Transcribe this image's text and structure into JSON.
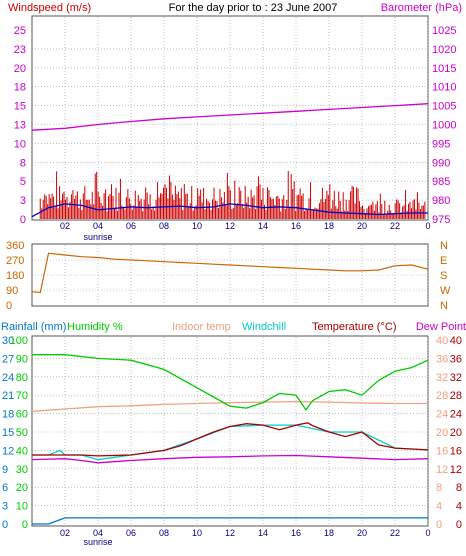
{
  "title": "For the day prior to : 23 June 2007",
  "colors": {
    "windspeed": "#cc0000",
    "windgust": "#0000cc",
    "barometer": "#cc00cc",
    "direction": "#cc6600",
    "rainfall": "#0077cc",
    "humidity": "#00cc00",
    "indoor": "#f0a080",
    "windchill": "#00cccc",
    "temperature": "#aa0000",
    "dewpoint": "#cc00cc",
    "grid": "#999999"
  },
  "chart_data": [
    {
      "type": "line",
      "panel": "wind-barometer",
      "title": "For the day prior to : 23 June 2007",
      "left_axis_label": "Windspeed (m/s)",
      "right_axis_label": "Barometer (hPa)",
      "left_ticks": [
        "0",
        "3",
        "5",
        "8",
        "10",
        "13",
        "15",
        "18",
        "20",
        "23",
        "25"
      ],
      "right_ticks": [
        "975",
        "980",
        "985",
        "990",
        "995",
        "1000",
        "1005",
        "1010",
        "1015",
        "1020",
        "1025"
      ],
      "ylim_left": [
        0,
        25
      ],
      "ylim_right": [
        975,
        1025
      ],
      "x_ticks": [
        "02",
        "04",
        "06",
        "08",
        "10",
        "12",
        "14",
        "16",
        "18",
        "20",
        "22",
        "0"
      ],
      "x_annotation": "sunrise",
      "series": [
        {
          "name": "Windspeed (m/s)",
          "axis": "left",
          "x": [
            0,
            1,
            2,
            3,
            4,
            5,
            6,
            7,
            8,
            9,
            10,
            11,
            12,
            13,
            14,
            15,
            16,
            17,
            18,
            19,
            20,
            21,
            22,
            23,
            24
          ],
          "values": [
            0.3,
            1.5,
            2,
            1.8,
            1.2,
            1.4,
            1.6,
            1.5,
            1.6,
            1.7,
            1.5,
            1.6,
            2,
            1.8,
            1.5,
            1.6,
            1.5,
            1.2,
            0.9,
            0.8,
            0.7,
            0.6,
            0.7,
            0.8,
            0.8
          ]
        },
        {
          "name": "Barometer (hPa)",
          "axis": "right",
          "x": [
            0,
            2,
            4,
            6,
            8,
            10,
            12,
            14,
            16,
            18,
            20,
            22,
            24
          ],
          "values": [
            998.5,
            999,
            1000,
            1000.8,
            1001.5,
            1002,
            1002.5,
            1003,
            1003.5,
            1004,
            1004.5,
            1005,
            1005.5
          ]
        }
      ]
    },
    {
      "type": "line",
      "panel": "wind-direction",
      "left_ticks": [
        "0",
        "90",
        "180",
        "270",
        "360"
      ],
      "right_ticks": [
        "N",
        "E",
        "S",
        "W",
        "N"
      ],
      "ylim": [
        0,
        360
      ],
      "x": [
        0,
        0.5,
        1,
        2,
        3,
        4,
        5,
        6,
        7,
        8,
        9,
        10,
        11,
        12,
        13,
        14,
        15,
        16,
        17,
        18,
        19,
        20,
        21,
        22,
        23,
        24
      ],
      "values": [
        80,
        75,
        310,
        300,
        290,
        285,
        275,
        270,
        265,
        260,
        255,
        250,
        245,
        240,
        235,
        230,
        225,
        220,
        215,
        210,
        205,
        205,
        210,
        235,
        240,
        215
      ]
    },
    {
      "type": "line",
      "panel": "temperature-humidity",
      "labels": {
        "rainfall": "Rainfall (mm)",
        "humidity": "Humidity %",
        "indoor": "Indoor temp",
        "windchill": "Windchill",
        "temperature": "Temperature (°C)",
        "dewpoint": "Dew Point"
      },
      "rain_ticks": [
        "0",
        "3",
        "6",
        "9",
        "12",
        "15",
        "18",
        "21",
        "24",
        "27",
        "30"
      ],
      "humidity_ticks": [
        "0",
        "10",
        "20",
        "30",
        "40",
        "50",
        "60",
        "70",
        "80",
        "90",
        "100"
      ],
      "temp_ticks": [
        "0",
        "4",
        "8",
        "12",
        "16",
        "20",
        "24",
        "28",
        "32",
        "36",
        "40"
      ],
      "ylim_rain": [
        0,
        30
      ],
      "ylim_humidity": [
        0,
        100
      ],
      "ylim_temp": [
        0,
        40
      ],
      "x_ticks": [
        "02",
        "04",
        "06",
        "08",
        "10",
        "12",
        "14",
        "16",
        "18",
        "20",
        "22",
        "0"
      ],
      "x_annotation": "sunrise",
      "series": [
        {
          "name": "Humidity %",
          "axis": "humidity",
          "x": [
            0,
            2,
            4,
            6,
            8,
            10,
            11,
            12,
            13,
            14,
            15,
            16,
            16.6,
            17,
            18,
            19,
            20,
            21,
            22,
            23,
            24
          ],
          "values": [
            92,
            92,
            90,
            89,
            84,
            74,
            69,
            64,
            63,
            66,
            71,
            70,
            62,
            67,
            72,
            73,
            70,
            78,
            83,
            85,
            89
          ]
        },
        {
          "name": "Indoor temp",
          "axis": "temp",
          "x": [
            0,
            2,
            4,
            6,
            8,
            10,
            12,
            14,
            16,
            18,
            20,
            22,
            24
          ],
          "values": [
            24.5,
            25,
            25.5,
            25.7,
            26,
            26.2,
            26.4,
            26.5,
            26.6,
            26.5,
            26.3,
            26.2,
            26.2
          ]
        },
        {
          "name": "Temperature (°C)",
          "axis": "temp",
          "x": [
            0,
            2,
            3,
            4,
            6,
            8,
            9,
            10,
            11,
            12,
            13,
            14,
            15,
            16,
            16.7,
            17,
            18,
            19,
            20,
            21,
            22,
            24
          ],
          "values": [
            15,
            15,
            15,
            14.8,
            15,
            16,
            17,
            18.5,
            20,
            21.2,
            21.8,
            21.5,
            20.5,
            21.5,
            22,
            21.4,
            20,
            19,
            20,
            17.2,
            16.5,
            16.1
          ]
        },
        {
          "name": "Dew Point",
          "axis": "temp",
          "x": [
            0,
            2,
            3,
            4,
            6,
            8,
            10,
            12,
            14,
            16,
            18,
            20,
            22,
            24
          ],
          "values": [
            14,
            14.2,
            13.8,
            13.3,
            13.8,
            14.2,
            14.5,
            14.6,
            14.8,
            14.9,
            14.6,
            14.3,
            14,
            14.2
          ]
        },
        {
          "name": "Windchill",
          "axis": "temp",
          "x": [
            0,
            1,
            1.7,
            2,
            3,
            4,
            6,
            8,
            10,
            12,
            14,
            16,
            18,
            20,
            22,
            24
          ],
          "values": [
            15,
            15,
            16,
            15,
            15,
            14,
            15,
            16,
            18.5,
            21.2,
            21.5,
            21.5,
            20,
            20,
            16.5,
            16.1
          ]
        },
        {
          "name": "Rainfall (mm)",
          "axis": "rain",
          "x": [
            0,
            1,
            1.5,
            2,
            4,
            6,
            8,
            10,
            12,
            14,
            16,
            18,
            20,
            22,
            24
          ],
          "values": [
            0,
            0,
            0.5,
            1,
            1,
            1,
            1,
            1,
            1,
            1,
            1,
            1,
            1,
            1,
            1
          ]
        }
      ]
    }
  ]
}
